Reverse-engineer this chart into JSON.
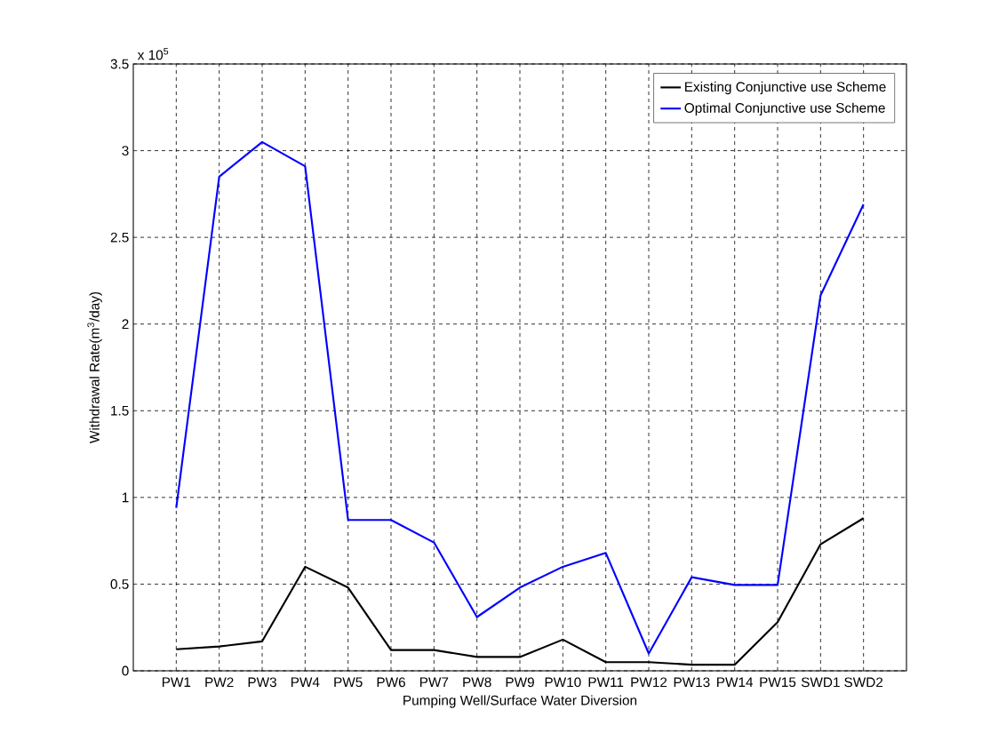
{
  "chart_data": {
    "type": "line",
    "xlabel": "Pumping Well/Surface Water Diversion",
    "ylabel": "Withdrawal Rate(m$^{3}$/day)",
    "annotations": [
      "x 10$^{5}$"
    ],
    "categories": [
      "PW1",
      "PW2",
      "PW3",
      "PW4",
      "PW5",
      "PW6",
      "PW7",
      "PW8",
      "PW9",
      "PW10",
      "PW11",
      "PW12",
      "PW13",
      "PW14",
      "PW15",
      "SWD1",
      "SWD2"
    ],
    "series": [
      {
        "name": "Existing Conjunctive use Scheme",
        "color": "#000000",
        "values": [
          0.124,
          0.14,
          0.17,
          0.6,
          0.48,
          0.12,
          0.12,
          0.08,
          0.08,
          0.18,
          0.05,
          0.05,
          0.035,
          0.035,
          0.28,
          0.73,
          0.88
        ]
      },
      {
        "name": "Optimal Conjunctive use Scheme",
        "color": "#0000ff",
        "values": [
          0.94,
          2.85,
          3.05,
          2.91,
          0.87,
          0.87,
          0.74,
          0.31,
          0.48,
          0.6,
          0.68,
          0.1,
          0.54,
          0.495,
          0.495,
          2.165,
          2.69
        ]
      }
    ],
    "ylim": [
      0,
      3.5
    ],
    "yticks": [
      0,
      0.5,
      1,
      1.5,
      2,
      2.5,
      3,
      3.5
    ],
    "grid": true,
    "legend": "top right",
    "marker": "none",
    "line_style": "solid"
  }
}
